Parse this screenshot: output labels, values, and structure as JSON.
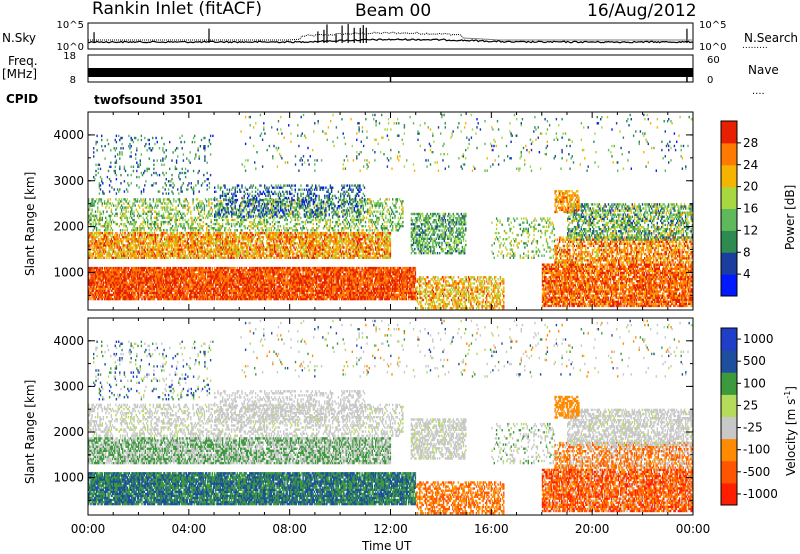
{
  "header": {
    "station": "Rankin Inlet (fitACF)",
    "beam": "Beam 00",
    "date": "16/Aug/2012"
  },
  "panel_labels": {
    "nsky": "N.Sky",
    "nsearch": "N.Search",
    "freq": "Freq.",
    "mhz": "[MHz]",
    "cpid": "CPID",
    "nave": "Nave",
    "cpid_name": "twofsound 3501"
  },
  "colors": {
    "power": [
      "#0019ff",
      "#1a3d9e",
      "#2d8a50",
      "#5fb85a",
      "#a8d840",
      "#f5b400",
      "#ff7a00",
      "#e62000"
    ],
    "velocity": [
      "#ff1f00",
      "#ff5500",
      "#ff8c00",
      "#c8c8c8",
      "#b4dc5a",
      "#3c9a3c",
      "#1d4f9e",
      "#1f3fc8"
    ],
    "ground_scatter": "#c8c8c8"
  },
  "chart_data": [
    {
      "type": "line",
      "name": "noise-panel",
      "ylabel": "N.Sky",
      "y_tick_labels": [
        "10^0",
        "10^5"
      ],
      "y2label": "N.Search",
      "y2_tick_labels": [
        "10^0",
        "10^5"
      ]
    },
    {
      "type": "line",
      "name": "frequency-panel",
      "ylabel": "Freq. [MHz]",
      "y_tick_labels": [
        "8",
        "18"
      ],
      "ylim": [
        8,
        18
      ],
      "y2label": "Nave",
      "y2_tick_labels": [
        "0",
        "60"
      ],
      "y2lim": [
        0,
        60
      ]
    },
    {
      "type": "heatmap",
      "name": "power-panel",
      "xlabel": "Time UT",
      "ylabel": "Slant Range [km]",
      "xlim": [
        0,
        24
      ],
      "ylim": [
        180,
        4500
      ],
      "x_tick_labels": [
        "00:00",
        "04:00",
        "08:00",
        "12:00",
        "16:00",
        "20:00",
        "00:00"
      ],
      "y_tick_labels": [
        "1000",
        "2000",
        "3000",
        "4000"
      ],
      "colorbar_label": "Power [dB]",
      "colorbar_ticks": [
        "4",
        "8",
        "12",
        "16",
        "20",
        "24",
        "28"
      ]
    },
    {
      "type": "heatmap",
      "name": "velocity-panel",
      "xlabel": "Time UT",
      "ylabel": "Slant Range [km]",
      "xlim": [
        0,
        24
      ],
      "ylim": [
        180,
        4500
      ],
      "x_tick_labels": [
        "00:00",
        "04:00",
        "08:00",
        "12:00",
        "16:00",
        "20:00",
        "00:00"
      ],
      "y_tick_labels": [
        "1000",
        "2000",
        "3000",
        "4000"
      ],
      "colorbar_label": "Velocity [m s^-1]",
      "colorbar_ticks": [
        "1000",
        "500",
        "100",
        "25",
        "-25",
        "-100",
        "-500",
        "-1000"
      ]
    }
  ],
  "axis_title": "Time UT"
}
